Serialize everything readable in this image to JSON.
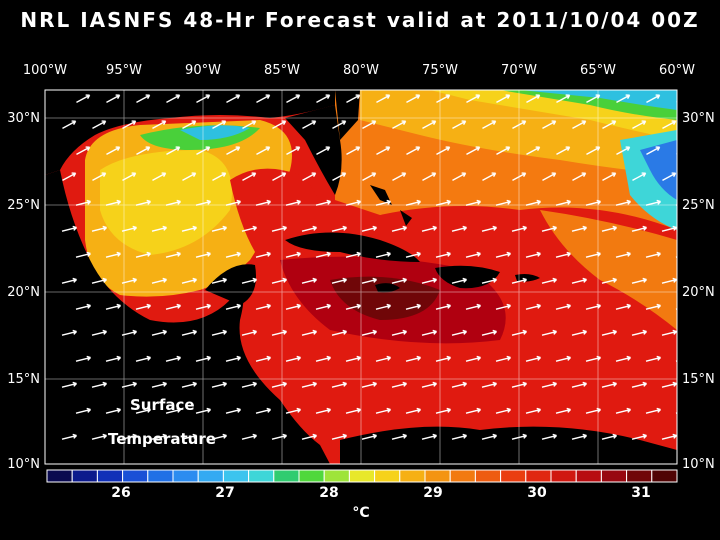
{
  "title": "NRL IASNFS  48-Hr Forecast valid at 2011/10/04 00Z",
  "map": {
    "lon_labels": [
      "100°W",
      "95°W",
      "90°W",
      "85°W",
      "80°W",
      "75°W",
      "70°W",
      "65°W",
      "60°W"
    ],
    "lat_labels": [
      "30°N",
      "25°N",
      "20°N",
      "15°N",
      "10°N"
    ],
    "overlay_line1": "Surface",
    "overlay_line2": "Temperature",
    "land_color": "#000000",
    "ocean_colors": {
      "warmest": "#b00010",
      "warm": "#e01a10",
      "orange": "#f47a10",
      "yellow": "#f6d21a",
      "green": "#49d03a",
      "cyan": "#2ec0e0",
      "blue": "#2a7ae6"
    }
  },
  "colorbar": {
    "unit": "°C",
    "tick_labels": [
      "26",
      "27",
      "28",
      "29",
      "30",
      "31"
    ],
    "colors": [
      "#0a0a50",
      "#0c1a8c",
      "#1030b8",
      "#1a50d6",
      "#2070e6",
      "#2c8cf0",
      "#34aaf2",
      "#3cc4ee",
      "#3ed6d8",
      "#30cc70",
      "#50d83c",
      "#9ee43a",
      "#e8e82a",
      "#f6d21a",
      "#f6b014",
      "#f49412",
      "#f27a10",
      "#ee5c10",
      "#ea3e10",
      "#e02810",
      "#d01810",
      "#b80c10",
      "#980810",
      "#700608",
      "#500404"
    ]
  }
}
